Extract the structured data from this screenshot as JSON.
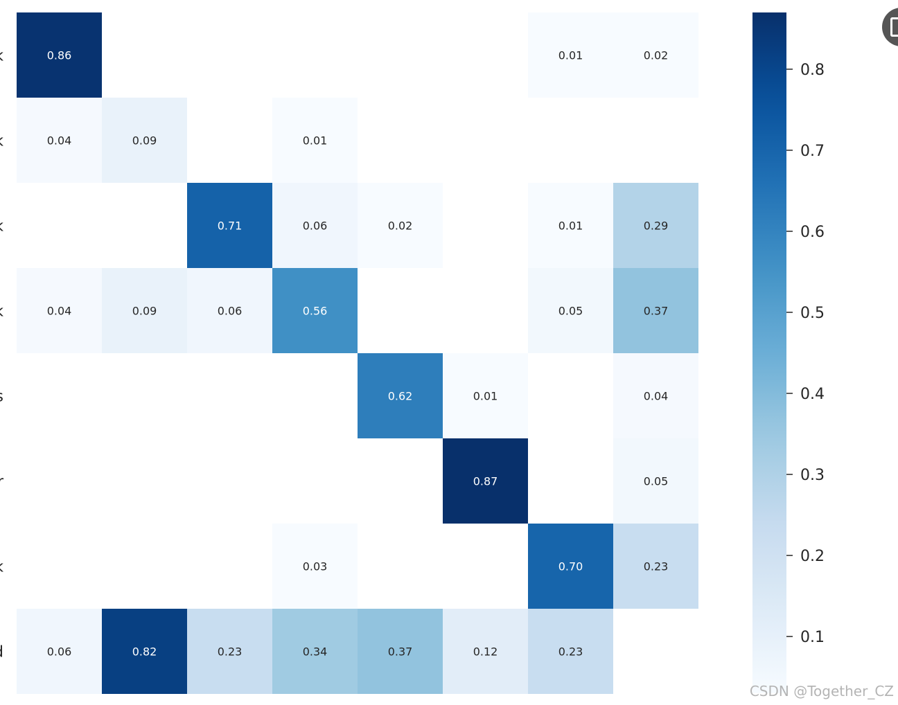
{
  "chart_data": {
    "type": "heatmap",
    "title": "",
    "xlabel": "",
    "ylabel": "",
    "row_labels": [
      "k",
      "k",
      "k",
      "k",
      "s",
      "r",
      "k",
      "d"
    ],
    "values": [
      [
        0.86,
        0,
        0,
        0,
        0,
        0,
        0.01,
        0.02
      ],
      [
        0.04,
        0.09,
        0,
        0.01,
        0,
        0,
        0,
        0
      ],
      [
        0,
        0,
        0.71,
        0.06,
        0.02,
        0,
        0.01,
        0.29
      ],
      [
        0.04,
        0.09,
        0.06,
        0.56,
        0,
        0,
        0.05,
        0.37
      ],
      [
        0,
        0,
        0,
        0,
        0.62,
        0.01,
        0,
        0.04
      ],
      [
        0,
        0,
        0,
        0,
        0,
        0.87,
        0,
        0.05
      ],
      [
        0,
        0,
        0,
        0.03,
        0,
        0,
        0.7,
        0.23
      ],
      [
        0.06,
        0.82,
        0.23,
        0.34,
        0.37,
        0.12,
        0.23,
        0
      ]
    ],
    "cell_labels": [
      [
        "0.86",
        "",
        "",
        "",
        "",
        "",
        "0.01",
        "0.02"
      ],
      [
        "0.04",
        "0.09",
        "",
        "0.01",
        "",
        "",
        "",
        ""
      ],
      [
        "",
        "",
        "0.71",
        "0.06",
        "0.02",
        "",
        "0.01",
        "0.29"
      ],
      [
        "0.04",
        "0.09",
        "0.06",
        "0.56",
        "",
        "",
        "0.05",
        "0.37"
      ],
      [
        "",
        "",
        "",
        "",
        "0.62",
        "0.01",
        "",
        "0.04"
      ],
      [
        "",
        "",
        "",
        "",
        "",
        "0.87",
        "",
        "0.05"
      ],
      [
        "",
        "",
        "",
        "0.03",
        "",
        "",
        "0.70",
        "0.23"
      ],
      [
        "0.06",
        "0.82",
        "0.23",
        "0.34",
        "0.37",
        "0.12",
        "0.23",
        ""
      ]
    ],
    "colormap": "Blues",
    "colorbar": {
      "range": [
        0.03,
        0.87
      ],
      "ticks": [
        0.1,
        0.2,
        0.3,
        0.4,
        0.5,
        0.6,
        0.7,
        0.8
      ],
      "tick_labels": [
        "0.1",
        "0.2",
        "0.3",
        "0.4",
        "0.5",
        "0.6",
        "0.7",
        "0.8"
      ]
    },
    "text_color_dark": "#262626",
    "text_color_light": "#ffffff"
  },
  "watermark": "CSDN @Together_CZ"
}
